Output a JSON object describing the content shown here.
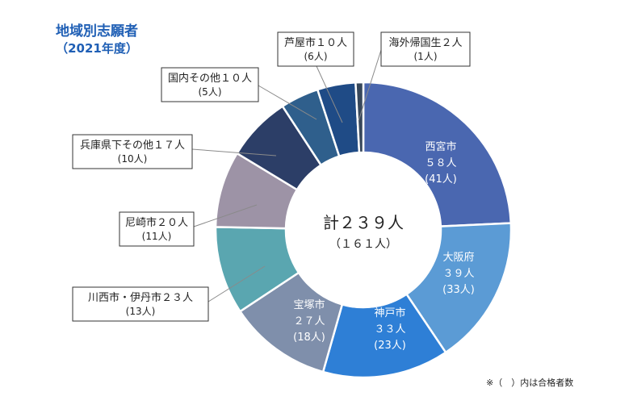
{
  "title": "地域別志願者",
  "subtitle": "（2021年度）",
  "footnote": "※（　）内は合格者数",
  "chart_data": {
    "type": "donut",
    "title": "地域別志願者",
    "subtitle": "（2021年度）",
    "center": {
      "total_label": "計２３９人",
      "total_value": 239,
      "passed_label": "（１６１人）",
      "passed_value": 161
    },
    "slices": [
      {
        "name": "西宮市",
        "value": 58,
        "value_label": "５８人",
        "passed": 41,
        "passed_label": "(41人)",
        "color": "#4a67b0",
        "label_color": "#ffffff",
        "inside": true
      },
      {
        "name": "大阪府",
        "value": 39,
        "value_label": "３９人",
        "passed": 33,
        "passed_label": "(33人)",
        "color": "#5b9bd5",
        "label_color": "#ffffff",
        "inside": true
      },
      {
        "name": "神戸市",
        "value": 33,
        "value_label": "３３人",
        "passed": 23,
        "passed_label": "(23人)",
        "color": "#2e7fd6",
        "label_color": "#ffffff",
        "inside": true
      },
      {
        "name": "宝塚市",
        "value": 27,
        "value_label": "２７人",
        "passed": 18,
        "passed_label": "(18人)",
        "color": "#7f8fab",
        "label_color": "#ffffff",
        "inside": true
      },
      {
        "name": "川西市・伊丹市",
        "value": 23,
        "value_label": "２３人",
        "passed": 13,
        "passed_label": "(13人)",
        "color": "#5aa6b0",
        "label_color": "#222222",
        "inside": false
      },
      {
        "name": "尼崎市",
        "value": 20,
        "value_label": "２０人",
        "passed": 11,
        "passed_label": "(11人)",
        "color": "#9d93a6",
        "label_color": "#222222",
        "inside": false
      },
      {
        "name": "兵庫県下その他",
        "value": 17,
        "value_label": "１７人",
        "passed": 10,
        "passed_label": "(10人)",
        "color": "#2c3e67",
        "label_color": "#222222",
        "inside": false
      },
      {
        "name": "国内その他",
        "value": 10,
        "value_label": "１０人",
        "passed": 5,
        "passed_label": "(5人)",
        "color": "#2f5f8c",
        "label_color": "#222222",
        "inside": false
      },
      {
        "name": "芦屋市",
        "value": 10,
        "value_label": "１０人",
        "passed": 6,
        "passed_label": "(6人)",
        "color": "#1f4b86",
        "label_color": "#222222",
        "inside": false
      },
      {
        "name": "海外帰国生",
        "value": 2,
        "value_label": "２人",
        "passed": 1,
        "passed_label": "(1人)",
        "color": "#37475a",
        "label_color": "#222222",
        "inside": false
      }
    ]
  }
}
